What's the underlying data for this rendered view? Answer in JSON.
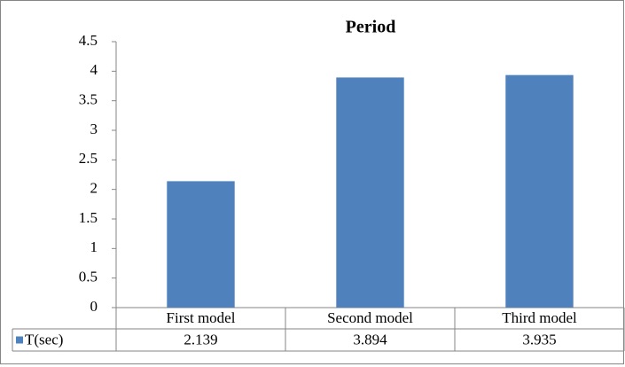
{
  "chart_data": {
    "type": "bar",
    "title": "Period",
    "categories": [
      "First model",
      "Second model",
      "Third model"
    ],
    "series": [
      {
        "name": "T(sec)",
        "color": "#4f81bd",
        "values": [
          2.139,
          3.894,
          3.935
        ]
      }
    ],
    "ylim": [
      0,
      4.5
    ],
    "yticks": [
      0,
      0.5,
      1,
      1.5,
      2,
      2.5,
      3,
      3.5,
      4,
      4.5
    ],
    "data_table": true
  }
}
